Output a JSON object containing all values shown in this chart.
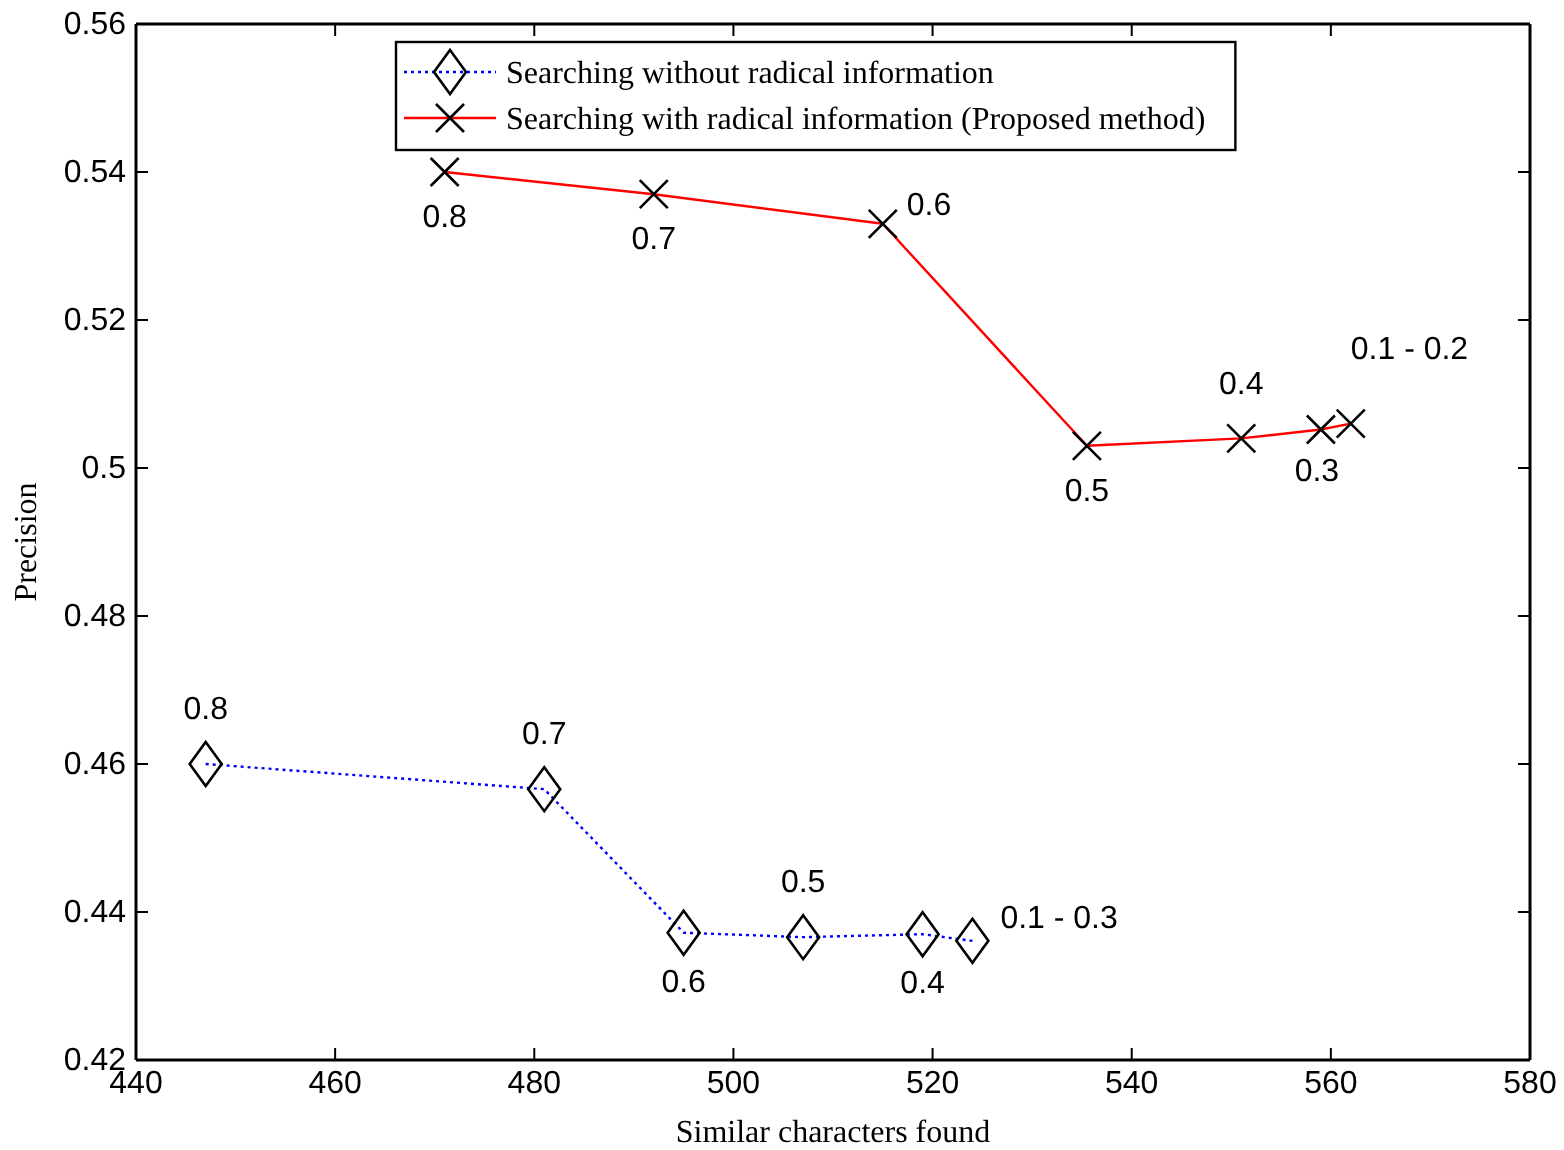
{
  "chart_data": {
    "type": "line",
    "xlabel": "Similar characters found",
    "ylabel": "Precision",
    "xlim": [
      440,
      580
    ],
    "xticks": [
      440,
      460,
      480,
      500,
      520,
      540,
      560,
      580
    ],
    "ylim": [
      0.42,
      0.56
    ],
    "yticks": [
      0.42,
      0.44,
      0.46,
      0.48,
      0.5,
      0.52,
      0.54,
      0.56
    ],
    "legend": "top",
    "grid": false,
    "series": [
      {
        "name": "Searching without radical information",
        "color": "#0000ff",
        "marker": "diamond",
        "line_style": "dotted",
        "x": [
          447,
          481,
          495,
          507,
          519,
          524
        ],
        "values": [
          0.46,
          0.4566,
          0.4372,
          0.4366,
          0.437,
          0.4361
        ]
      },
      {
        "name": "Searching with radical information (Proposed method)",
        "color": "#ff0000",
        "marker": "cross",
        "line_style": "solid",
        "x": [
          471,
          492,
          515,
          535.5,
          551,
          559,
          562
        ],
        "values": [
          0.54,
          0.537,
          0.533,
          0.503,
          0.504,
          0.5052,
          0.506
        ]
      }
    ],
    "annotations": [
      {
        "text": "0.8",
        "x": 447,
        "y": 0.46
      },
      {
        "text": "0.7",
        "x": 481,
        "y": 0.4566
      },
      {
        "text": "0.6",
        "x": 495,
        "y": 0.4372
      },
      {
        "text": "0.5",
        "x": 507,
        "y": 0.4366
      },
      {
        "text": "0.4",
        "x": 519,
        "y": 0.437
      },
      {
        "text": "0.1 - 0.3",
        "x": 524,
        "y": 0.4361
      },
      {
        "text": "0.8",
        "x": 471,
        "y": 0.54
      },
      {
        "text": "0.7",
        "x": 492,
        "y": 0.537
      },
      {
        "text": "0.6",
        "x": 515,
        "y": 0.533
      },
      {
        "text": "0.5",
        "x": 535.5,
        "y": 0.503
      },
      {
        "text": "0.4",
        "x": 551,
        "y": 0.504
      },
      {
        "text": "0.3",
        "x": 559,
        "y": 0.5052
      },
      {
        "text": "0.1 - 0.2",
        "x": 562,
        "y": 0.506
      }
    ]
  }
}
